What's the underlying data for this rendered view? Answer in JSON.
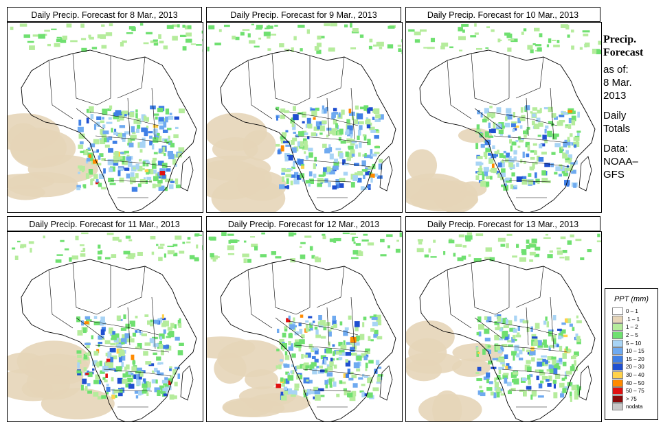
{
  "panels": [
    {
      "title": "Daily Precip. Forecast for  8 Mar., 2013"
    },
    {
      "title": "Daily Precip. Forecast for  9 Mar., 2013"
    },
    {
      "title": "Daily Precip. Forecast for  10 Mar., 2013"
    },
    {
      "title": "Daily Precip. Forecast for  11 Mar., 2013"
    },
    {
      "title": "Daily Precip. Forecast for  12 Mar., 2013"
    },
    {
      "title": "Daily Precip. Forecast for  13 Mar., 2013"
    }
  ],
  "sidebar": {
    "title_line1": "Precip.",
    "title_line2": "Forecast",
    "asof": "as of:",
    "date_line1": "8 Mar.",
    "date_line2": "2013",
    "daily1": "Daily",
    "daily2": "Totals",
    "data1": "Data:",
    "data2": "NOAA–",
    "data3": "GFS"
  },
  "legend": {
    "title": "PPT (mm)",
    "items": [
      {
        "label": "0 – 1",
        "color": "#ffffff"
      },
      {
        "label": ".1 – 1",
        "color": "#e6d5b8"
      },
      {
        "label": "1 – 2",
        "color": "#b5ec9c"
      },
      {
        "label": "2 – 5",
        "color": "#6fe070"
      },
      {
        "label": "5 – 10",
        "color": "#a8d4f5"
      },
      {
        "label": "10 – 15",
        "color": "#6faaf0"
      },
      {
        "label": "15 – 20",
        "color": "#3f7fe6"
      },
      {
        "label": "20 – 30",
        "color": "#1f4fd0"
      },
      {
        "label": "30 – 40",
        "color": "#ffd24a"
      },
      {
        "label": "40 – 50",
        "color": "#ff8a00"
      },
      {
        "label": "50 – 75",
        "color": "#e01010"
      },
      {
        "label": "> 75",
        "color": "#8a0a0a"
      },
      {
        "label": "nodata",
        "color": "#c8c8c8"
      }
    ]
  }
}
